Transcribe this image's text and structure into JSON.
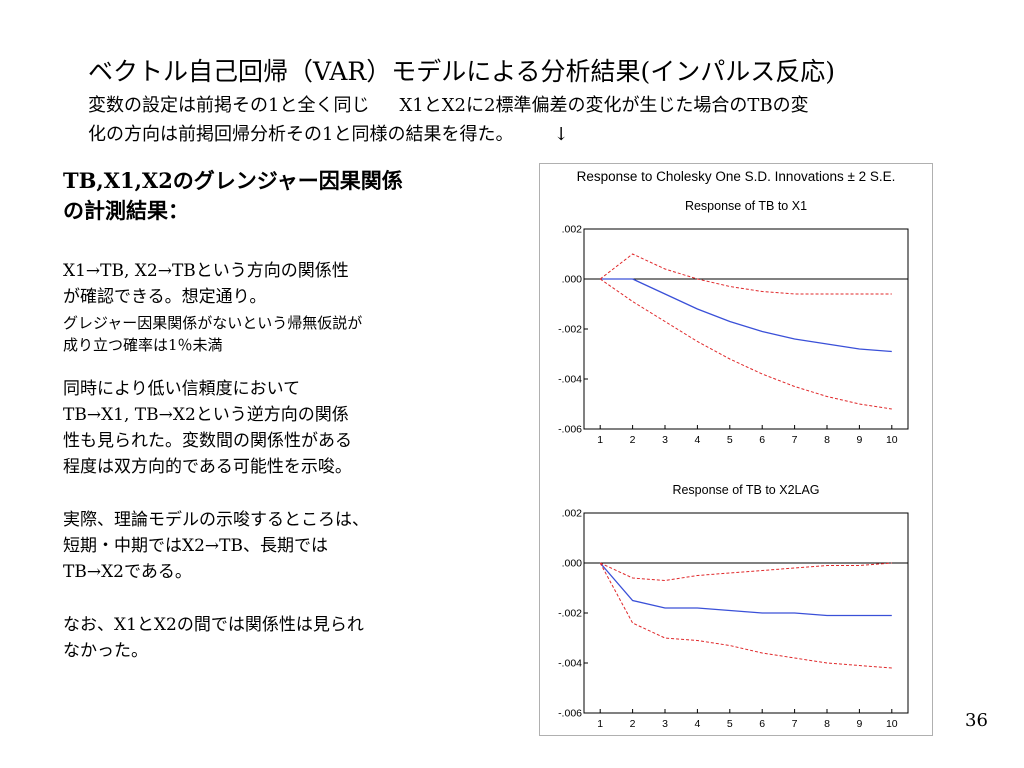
{
  "slide": {
    "title": "ベクトル自己回帰（VAR）モデルによる分析結果(インパルス反応)",
    "subtitle_line1_a": "変数の設定は前掲その1と全く同じ",
    "subtitle_line1_b": "X1とX2に2標準偏差の変化が生じた場合のTBの変",
    "subtitle_line2": "化の方向は前掲回帰分析その1と同様の結果を得た。",
    "subtitle_arrow": "↓",
    "page_number": "36"
  },
  "left_text": {
    "heading_line1": "TB,X1,X2のグレンジャー因果関係",
    "heading_line2": "の計測結果：",
    "p1_line1": "X1→TB, X2→TBという方向の関係性",
    "p1_line2": "が確認できる。想定通り。",
    "p1_note_line1": "グレジャー因果関係がないという帰無仮説が",
    "p1_note_line2": "成り立つ確率は1％未満",
    "p2_line1": "同時により低い信頼度において",
    "p2_line2": "TB→X1, TB→X2という逆方向の関係",
    "p2_line3": "性も見られた。変数間の関係性がある",
    "p2_line4": "程度は双方向的である可能性を示唆。",
    "p3_line1": "実際、理論モデルの示唆するところは、",
    "p3_line2": "短期・中期ではX2→TB、長期では",
    "p3_line3": "TB→X2である。",
    "p4_line1": "なお、X1とX2の間では関係性は見られ",
    "p4_line2": "なかった。"
  },
  "chart_header": "Response to Cholesky One S.D. Innovations ± 2 S.E.",
  "chart_data": [
    {
      "type": "line",
      "title": "Response of TB to X1",
      "x": [
        1,
        2,
        3,
        4,
        5,
        6,
        7,
        8,
        9,
        10
      ],
      "y_ticks": [
        ".002",
        ".000",
        "-.002",
        "-.004",
        "-.006"
      ],
      "ylim": [
        -0.006,
        0.002
      ],
      "zero_line": true,
      "series": [
        {
          "role": "response",
          "color": "#3a50d8",
          "dashed": false,
          "values": [
            0.0,
            0.0,
            -0.0006,
            -0.0012,
            -0.0017,
            -0.0021,
            -0.0024,
            -0.0026,
            -0.0028,
            -0.0029
          ]
        },
        {
          "role": "upper-2se",
          "color": "#e0282a",
          "dashed": true,
          "values": [
            0.0,
            0.001,
            0.0004,
            0.0,
            -0.0003,
            -0.0005,
            -0.0006,
            -0.0006,
            -0.0006,
            -0.0006
          ]
        },
        {
          "role": "lower-2se",
          "color": "#e0282a",
          "dashed": true,
          "values": [
            0.0,
            -0.0009,
            -0.0017,
            -0.0025,
            -0.0032,
            -0.0038,
            -0.0043,
            -0.0047,
            -0.005,
            -0.0052
          ]
        }
      ]
    },
    {
      "type": "line",
      "title": "Response of TB to X2LAG",
      "x": [
        1,
        2,
        3,
        4,
        5,
        6,
        7,
        8,
        9,
        10
      ],
      "y_ticks": [
        ".002",
        ".000",
        "-.002",
        "-.004",
        "-.006"
      ],
      "ylim": [
        -0.006,
        0.002
      ],
      "zero_line": true,
      "series": [
        {
          "role": "response",
          "color": "#3a50d8",
          "dashed": false,
          "values": [
            0.0,
            -0.0015,
            -0.0018,
            -0.0018,
            -0.0019,
            -0.002,
            -0.002,
            -0.0021,
            -0.0021,
            -0.0021
          ]
        },
        {
          "role": "upper-2se",
          "color": "#e0282a",
          "dashed": true,
          "values": [
            0.0,
            -0.0006,
            -0.0007,
            -0.0005,
            -0.0004,
            -0.0003,
            -0.0002,
            -0.0001,
            -0.0001,
            0.0
          ]
        },
        {
          "role": "lower-2se",
          "color": "#e0282a",
          "dashed": true,
          "values": [
            0.0,
            -0.0024,
            -0.003,
            -0.0031,
            -0.0033,
            -0.0036,
            -0.0038,
            -0.004,
            -0.0041,
            -0.0042
          ]
        }
      ]
    }
  ]
}
